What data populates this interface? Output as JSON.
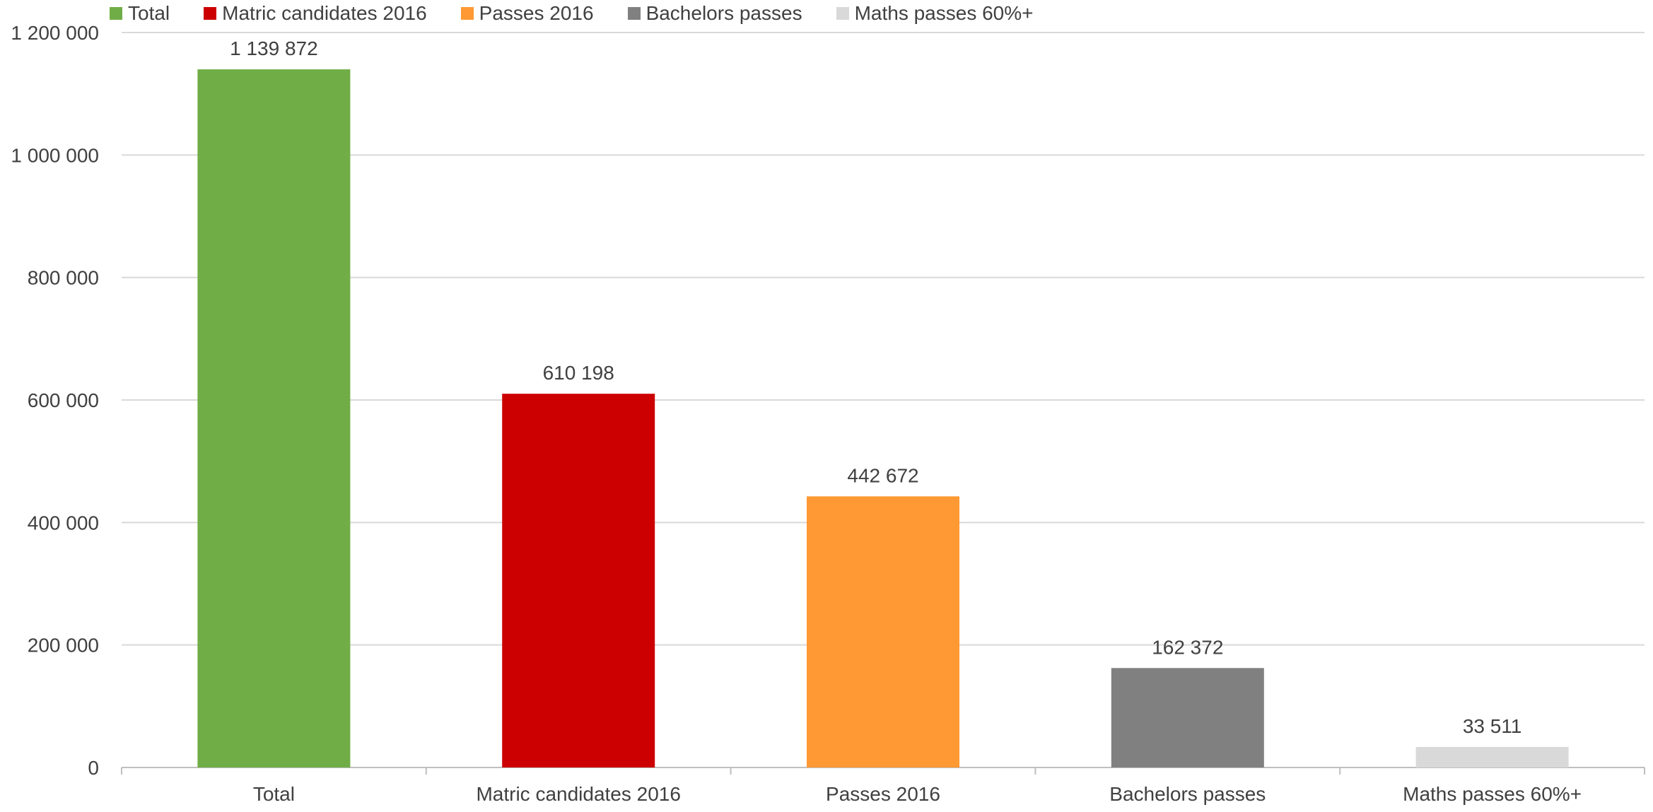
{
  "chart_data": {
    "type": "bar",
    "categories": [
      "Total",
      "Matric candidates 2016",
      "Passes 2016",
      "Bachelors passes",
      "Maths passes 60%+"
    ],
    "values": [
      1139872,
      610198,
      442672,
      162372,
      33511
    ],
    "value_labels": [
      "1 139 872",
      "610 198",
      "442 672",
      "162 372",
      "33 511"
    ],
    "colors": [
      "#70AD47",
      "#CC0000",
      "#FF9933",
      "#808080",
      "#D9D9D9"
    ],
    "legend": [
      "Total",
      "Matric candidates 2016",
      "Passes 2016",
      "Bachelors passes",
      "Maths passes 60%+"
    ],
    "legend_position": "top-left",
    "yticks": [
      0,
      200000,
      400000,
      600000,
      800000,
      1000000,
      1200000
    ],
    "ytick_labels": [
      "0",
      "200 000",
      "400 000",
      "600 000",
      "800 000",
      "1 000 000",
      "1 200 000"
    ],
    "ylim": [
      0,
      1200000
    ],
    "grid": true,
    "title": "",
    "xlabel": "",
    "ylabel": ""
  }
}
